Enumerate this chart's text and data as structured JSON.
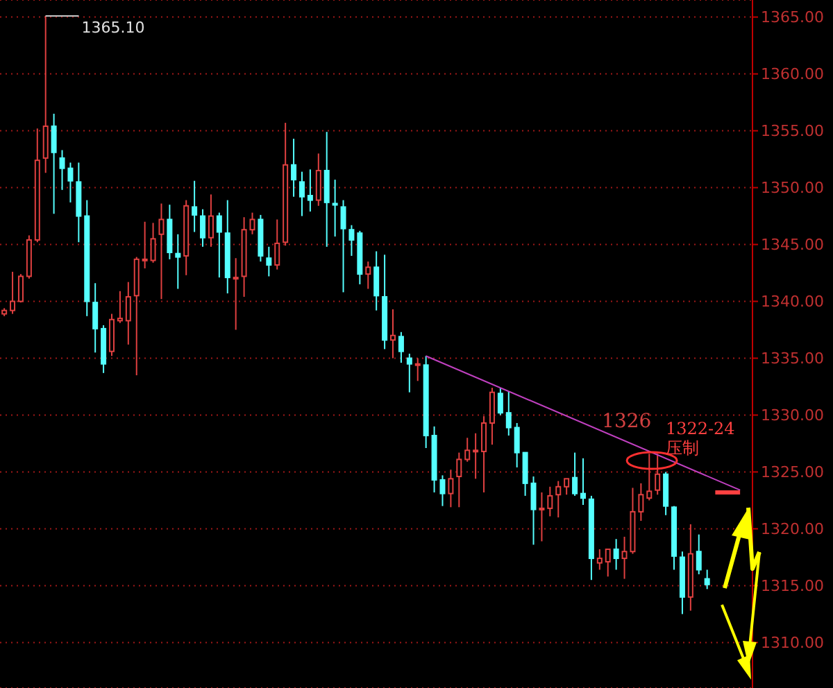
{
  "chart_data": {
    "type": "candlestick",
    "categories": [
      null,
      null,
      null,
      null,
      null,
      null,
      null,
      null,
      null,
      null,
      null,
      null,
      null,
      null,
      null,
      null,
      null,
      null,
      null,
      null,
      null,
      null,
      null,
      null,
      null,
      null,
      null,
      null,
      null,
      null,
      null,
      null,
      null,
      null,
      null,
      null,
      null,
      null,
      null,
      null,
      null,
      null,
      null,
      null,
      null,
      null,
      null,
      null,
      null,
      null,
      null,
      null,
      null,
      null,
      null,
      null,
      null,
      null,
      null,
      null,
      null,
      null,
      null,
      null,
      null,
      null,
      null,
      null,
      null,
      null,
      null,
      null,
      null,
      null,
      null,
      null,
      null,
      null,
      null,
      null,
      null,
      null,
      null,
      null,
      null,
      null,
      null,
      null,
      null,
      null,
      null
    ],
    "ohlc": [
      [
        1338.9,
        1339.4,
        1338.7,
        1339.2
      ],
      [
        1339.2,
        1342.6,
        1338.9,
        1340.0
      ],
      [
        1340.0,
        1342.4,
        1339.9,
        1342.2
      ],
      [
        1342.2,
        1345.8,
        1342.0,
        1345.4
      ],
      [
        1345.4,
        1355.2,
        1345.2,
        1352.4
      ],
      [
        1352.6,
        1365.1,
        1351.3,
        1355.4
      ],
      [
        1355.4,
        1356.5,
        1347.7,
        1353.1
      ],
      [
        1352.6,
        1353.3,
        1349.8,
        1351.7
      ],
      [
        1351.7,
        1352.2,
        1348.7,
        1350.6
      ],
      [
        1350.5,
        1352.2,
        1345.2,
        1347.5
      ],
      [
        1347.5,
        1348.9,
        1338.7,
        1340.0
      ],
      [
        1339.9,
        1341.6,
        1335.5,
        1337.6
      ],
      [
        1337.6,
        1337.9,
        1333.7,
        1334.5
      ],
      [
        1335.6,
        1338.9,
        1335.2,
        1338.4
      ],
      [
        1338.3,
        1340.9,
        1338.1,
        1338.5
      ],
      [
        1338.3,
        1341.7,
        1336.2,
        1340.4
      ],
      [
        1340.5,
        1343.9,
        1333.5,
        1343.7
      ],
      [
        1343.6,
        1347.0,
        1342.9,
        1343.7
      ],
      [
        1343.6,
        1346.9,
        1343.4,
        1345.5
      ],
      [
        1345.9,
        1348.6,
        1340.2,
        1347.2
      ],
      [
        1347.2,
        1348.5,
        1343.7,
        1344.3
      ],
      [
        1344.2,
        1345.9,
        1341.1,
        1343.9
      ],
      [
        1344.0,
        1348.9,
        1342.3,
        1348.4
      ],
      [
        1348.3,
        1350.6,
        1346.1,
        1347.6
      ],
      [
        1347.5,
        1348.1,
        1344.8,
        1345.6
      ],
      [
        1345.6,
        1349.4,
        1344.8,
        1347.5
      ],
      [
        1347.5,
        1347.8,
        1342.1,
        1346.1
      ],
      [
        1346.0,
        1348.9,
        1340.7,
        1342.1
      ],
      [
        1342.0,
        1343.8,
        1337.5,
        1342.1
      ],
      [
        1342.2,
        1347.4,
        1340.4,
        1346.3
      ],
      [
        1346.3,
        1347.8,
        1345.9,
        1347.2
      ],
      [
        1347.2,
        1347.6,
        1343.5,
        1344.0
      ],
      [
        1343.8,
        1344.8,
        1342.2,
        1343.2
      ],
      [
        1343.2,
        1347.2,
        1342.8,
        1345.1
      ],
      [
        1345.2,
        1355.7,
        1344.9,
        1352.0
      ],
      [
        1352.0,
        1354.3,
        1349.2,
        1350.7
      ],
      [
        1350.5,
        1351.4,
        1347.5,
        1349.2
      ],
      [
        1349.3,
        1351.6,
        1347.9,
        1348.9
      ],
      [
        1348.9,
        1353.0,
        1348.4,
        1351.5
      ],
      [
        1351.5,
        1354.9,
        1344.8,
        1348.7
      ],
      [
        1348.6,
        1350.7,
        1345.7,
        1348.5
      ],
      [
        1348.3,
        1348.9,
        1340.8,
        1346.4
      ],
      [
        1346.3,
        1346.7,
        1344.0,
        1345.4
      ],
      [
        1346.0,
        1346.2,
        1341.5,
        1342.4
      ],
      [
        1342.4,
        1343.5,
        1341.1,
        1343.0
      ],
      [
        1343.0,
        1344.4,
        1339.2,
        1340.5
      ],
      [
        1340.4,
        1344.1,
        1335.8,
        1336.6
      ],
      [
        1336.6,
        1339.3,
        1335.0,
        1337.0
      ],
      [
        1336.9,
        1337.3,
        1334.6,
        1335.6
      ],
      [
        1335.0,
        1335.4,
        1332.0,
        1334.5
      ],
      [
        1334.4,
        1335.0,
        1333.0,
        1334.5
      ],
      [
        1334.4,
        1335.2,
        1327.1,
        1328.2
      ],
      [
        1328.2,
        1329.0,
        1323.2,
        1324.3
      ],
      [
        1324.3,
        1324.7,
        1322.0,
        1323.1
      ],
      [
        1323.1,
        1325.2,
        1321.9,
        1324.4
      ],
      [
        1324.6,
        1326.7,
        1321.9,
        1326.1
      ],
      [
        1326.1,
        1328.0,
        1325.9,
        1326.9
      ],
      [
        1326.8,
        1328.4,
        1324.4,
        1326.9
      ],
      [
        1326.8,
        1329.9,
        1323.2,
        1329.3
      ],
      [
        1329.3,
        1332.4,
        1327.4,
        1332.0
      ],
      [
        1331.9,
        1332.4,
        1330.0,
        1330.2
      ],
      [
        1330.2,
        1332.1,
        1328.2,
        1328.9
      ],
      [
        1328.9,
        1329.3,
        1325.4,
        1326.7
      ],
      [
        1326.7,
        1326.7,
        1322.9,
        1324.0
      ],
      [
        1324.0,
        1324.6,
        1318.6,
        1321.7
      ],
      [
        1321.7,
        1323.2,
        1318.9,
        1321.8
      ],
      [
        1321.8,
        1323.7,
        1321.1,
        1322.9
      ],
      [
        1323.0,
        1324.2,
        1321.0,
        1323.7
      ],
      [
        1323.7,
        1324.4,
        1323.0,
        1324.4
      ],
      [
        1324.5,
        1326.7,
        1322.9,
        1323.1
      ],
      [
        1323.1,
        1326.2,
        1322.1,
        1322.7
      ],
      [
        1322.6,
        1322.9,
        1315.5,
        1317.4
      ],
      [
        1317.0,
        1318.2,
        1316.4,
        1317.4
      ],
      [
        1317.1,
        1318.2,
        1315.8,
        1318.2
      ],
      [
        1318.2,
        1319.1,
        1316.4,
        1317.4
      ],
      [
        1317.4,
        1319.3,
        1315.6,
        1318.0
      ],
      [
        1318.0,
        1323.6,
        1317.8,
        1321.5
      ],
      [
        1321.5,
        1324.0,
        1320.7,
        1323.0
      ],
      [
        1322.7,
        1326.6,
        1322.5,
        1323.3
      ],
      [
        1323.4,
        1326.6,
        1323.0,
        1324.8
      ],
      [
        1324.8,
        1325.0,
        1321.2,
        1322.0
      ],
      [
        1321.9,
        1322.0,
        1316.4,
        1317.6
      ],
      [
        1317.5,
        1318.0,
        1312.5,
        1314.0
      ],
      [
        1314.0,
        1320.4,
        1312.8,
        1317.8
      ],
      [
        1318.0,
        1319.5,
        1316.0,
        1316.4
      ],
      [
        1315.6,
        1316.4,
        1314.7,
        1315.1
      ],
      null,
      null,
      null,
      null,
      null
    ],
    "colors": [
      "#e04040",
      "#e04040",
      "#e04040",
      "#e04040",
      "#e04040",
      "#e04040",
      "#55ffff",
      "#55ffff",
      "#55ffff",
      "#55ffff",
      "#55ffff",
      "#55ffff",
      "#55ffff",
      "#e04040",
      "#e04040",
      "#e04040",
      "#e04040",
      "#e04040",
      "#e04040",
      "#e04040",
      "#55ffff",
      "#55ffff",
      "#e04040",
      "#55ffff",
      "#55ffff",
      "#e04040",
      "#55ffff",
      "#55ffff",
      "#e04040",
      "#e04040",
      "#e04040",
      "#55ffff",
      "#55ffff",
      "#e04040",
      "#e04040",
      "#55ffff",
      "#55ffff",
      "#55ffff",
      "#e04040",
      "#55ffff",
      "#55ffff",
      "#55ffff",
      "#55ffff",
      "#55ffff",
      "#e04040",
      "#55ffff",
      "#55ffff",
      "#e04040",
      "#55ffff",
      "#55ffff",
      "#e04040",
      "#55ffff",
      "#55ffff",
      "#55ffff",
      "#e04040",
      "#e04040",
      "#e04040",
      "#e04040",
      "#e04040",
      "#e04040",
      "#55ffff",
      "#55ffff",
      "#55ffff",
      "#55ffff",
      "#55ffff",
      "#e04040",
      "#e04040",
      "#e04040",
      "#e04040",
      "#55ffff",
      "#55ffff",
      "#55ffff",
      "#e04040",
      "#e04040",
      "#55ffff",
      "#e04040",
      "#e04040",
      "#e04040",
      "#e04040",
      "#e04040",
      "#55ffff",
      "#55ffff",
      "#55ffff",
      "#e04040",
      "#55ffff",
      "#55ffff",
      null,
      null,
      null,
      null,
      null
    ],
    "series": [
      {
        "type": "line",
        "color": "#c040c0",
        "values": [
          null,
          null,
          null,
          null,
          null,
          null,
          null,
          null,
          null,
          null,
          null,
          null,
          null,
          null,
          null,
          null,
          null,
          null,
          null,
          null,
          null,
          null,
          null,
          null,
          null,
          null,
          null,
          null,
          null,
          null,
          null,
          null,
          null,
          null,
          null,
          null,
          null,
          null,
          null,
          null,
          null,
          null,
          null,
          null,
          null,
          null,
          null,
          null,
          null,
          null,
          null,
          1335.2,
          null,
          null,
          null,
          null,
          null,
          null,
          null,
          null,
          null,
          null,
          null,
          null,
          null,
          null,
          null,
          null,
          null,
          null,
          null,
          null,
          null,
          null,
          null,
          null,
          null,
          null,
          null,
          null,
          null,
          null,
          null,
          null,
          null,
          null,
          null,
          null,
          null,
          1323.4,
          null
        ]
      },
      {
        "type": "line",
        "color": "#ff4040",
        "values": [
          null,
          null,
          null,
          null,
          null,
          null,
          null,
          null,
          null,
          null,
          null,
          null,
          null,
          null,
          null,
          null,
          null,
          null,
          null,
          null,
          null,
          null,
          null,
          null,
          null,
          null,
          null,
          null,
          null,
          null,
          null,
          null,
          null,
          null,
          null,
          null,
          null,
          null,
          null,
          null,
          null,
          null,
          null,
          null,
          null,
          null,
          null,
          null,
          null,
          null,
          null,
          null,
          null,
          null,
          null,
          null,
          null,
          null,
          null,
          null,
          null,
          null,
          null,
          null,
          null,
          null,
          null,
          null,
          null,
          null,
          null,
          null,
          null,
          null,
          null,
          null,
          null,
          null,
          null,
          null,
          null,
          null,
          null,
          null,
          null,
          null,
          1323.2,
          1323.2,
          1323.2,
          1323.2,
          null
        ]
      }
    ],
    "ylim": [
      1306,
      1366.5
    ],
    "yticks": [
      {
        "value": 1310,
        "label": "1310.00"
      },
      {
        "value": 1315,
        "label": "1315.00"
      },
      {
        "value": 1320,
        "label": "1320.00"
      },
      {
        "value": 1325,
        "label": "1325.00"
      },
      {
        "value": 1330,
        "label": "1330.00"
      },
      {
        "value": 1335,
        "label": "1335.00"
      },
      {
        "value": 1340,
        "label": "1340.00"
      },
      {
        "value": 1345,
        "label": "1345.00"
      },
      {
        "value": 1350,
        "label": "1350.00"
      },
      {
        "value": 1355,
        "label": "1355.00"
      },
      {
        "value": 1360,
        "label": "1360.00"
      },
      {
        "value": 1365,
        "label": "1365.00"
      }
    ],
    "grid": "y",
    "annotations": [
      "1365.10",
      "1326",
      "1322-24压制"
    ]
  }
}
